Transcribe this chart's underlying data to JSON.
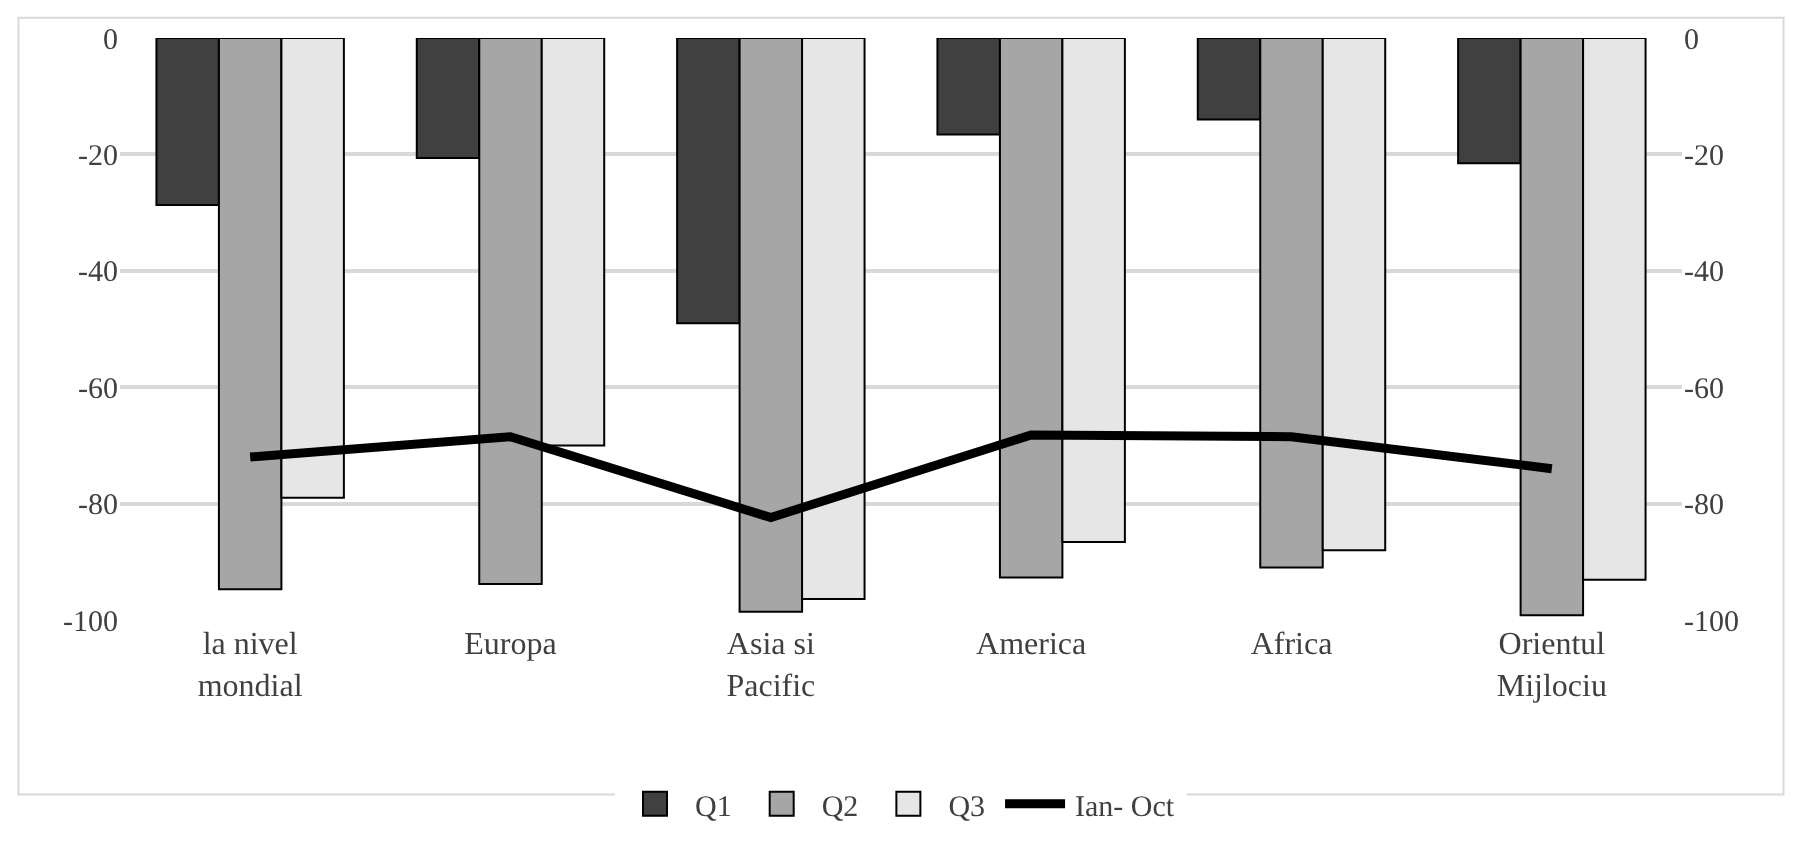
{
  "chart_data": {
    "type": "bar",
    "categories": [
      "la nivel mondial",
      "Europa",
      "Asia si Pacific",
      "America",
      "Africa",
      "Orientul Mijlociu"
    ],
    "series": [
      {
        "name": "Q1",
        "color": "#404040",
        "values": [
          -28.7,
          -20.6,
          -49,
          -16.6,
          -14,
          -21.5
        ]
      },
      {
        "name": "Q2",
        "color": "#a6a6a6",
        "values": [
          -94.7,
          -93.8,
          -98.6,
          -92.7,
          -91,
          -99.2
        ]
      },
      {
        "name": "Q3",
        "color": "#e6e6e6",
        "values": [
          -79,
          -70,
          -96.4,
          -86.6,
          -88,
          -93.1
        ]
      },
      {
        "name": "Ian- Oct",
        "type": "line",
        "axis": "y2",
        "color": "#000000",
        "values": [
          -72,
          -68.5,
          -82.4,
          -68.2,
          -68.5,
          -74
        ]
      }
    ],
    "ylim": [
      -100,
      0
    ],
    "yticks": [
      0,
      -20,
      -40,
      -60,
      -80,
      -100
    ],
    "y2lim": [
      -100,
      0
    ],
    "y2ticks": [
      0,
      -20,
      -40,
      -60,
      -80,
      -100
    ],
    "grid": "y",
    "legend": "bottom",
    "marker": "none",
    "line_style": "solid"
  }
}
